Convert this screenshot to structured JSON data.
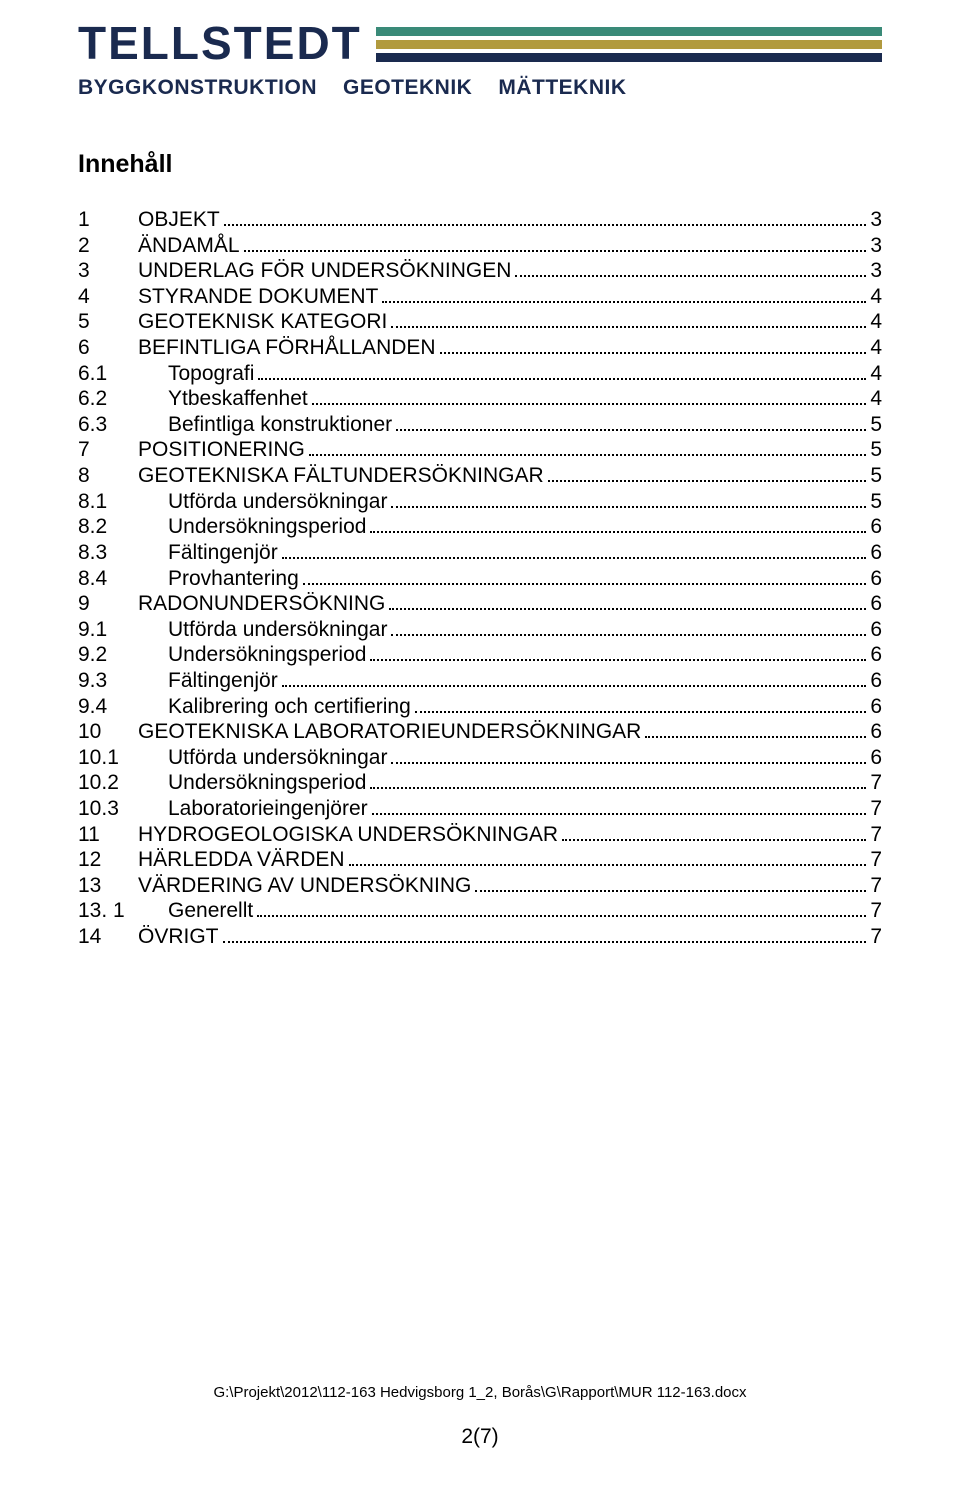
{
  "header": {
    "logo_text": "TELLSTEDT",
    "bar_colors": [
      "#3a8a78",
      "#b19a3e",
      "#1a2a4f"
    ],
    "subheads": [
      "BYGGKONSTRUKTION",
      "GEOTEKNIK",
      "MÄTTEKNIK"
    ],
    "logo_color": "#1a2a4f"
  },
  "section_title": "Innehåll",
  "toc": [
    {
      "num": "1",
      "title": "OBJEKT",
      "page": "3",
      "level": 1
    },
    {
      "num": "2",
      "title": "ÄNDAMÅL",
      "page": "3",
      "level": 1
    },
    {
      "num": "3",
      "title": "UNDERLAG FÖR UNDERSÖKNINGEN",
      "page": "3",
      "level": 1
    },
    {
      "num": "4",
      "title": "STYRANDE DOKUMENT",
      "page": "4",
      "level": 1
    },
    {
      "num": "5",
      "title": "GEOTEKNISK KATEGORI",
      "page": "4",
      "level": 1
    },
    {
      "num": "6",
      "title": "BEFINTLIGA FÖRHÅLLANDEN",
      "page": "4",
      "level": 1
    },
    {
      "num": "6.1",
      "title": "Topografi",
      "page": "4",
      "level": 2
    },
    {
      "num": "6.2",
      "title": "Ytbeskaffenhet",
      "page": "4",
      "level": 2
    },
    {
      "num": "6.3",
      "title": "Befintliga konstruktioner",
      "page": "5",
      "level": 2
    },
    {
      "num": "7",
      "title": "POSITIONERING",
      "page": "5",
      "level": 1
    },
    {
      "num": "8",
      "title": "GEOTEKNISKA FÄLTUNDERSÖKNINGAR",
      "page": "5",
      "level": 1
    },
    {
      "num": "8.1",
      "title": "Utförda undersökningar",
      "page": "5",
      "level": 2
    },
    {
      "num": "8.2",
      "title": "Undersökningsperiod",
      "page": "6",
      "level": 2
    },
    {
      "num": "8.3",
      "title": "Fältingenjör",
      "page": "6",
      "level": 2
    },
    {
      "num": "8.4",
      "title": "Provhantering",
      "page": "6",
      "level": 2
    },
    {
      "num": "9",
      "title": "RADONUNDERSÖKNING",
      "page": "6",
      "level": 1
    },
    {
      "num": "9.1",
      "title": "Utförda undersökningar",
      "page": "6",
      "level": 2
    },
    {
      "num": "9.2",
      "title": "Undersökningsperiod",
      "page": "6",
      "level": 2
    },
    {
      "num": "9.3",
      "title": "Fältingenjör",
      "page": "6",
      "level": 2
    },
    {
      "num": "9.4",
      "title": "Kalibrering och certifiering",
      "page": "6",
      "level": 2
    },
    {
      "num": "10",
      "title": "GEOTEKNISKA LABORATORIEUNDERSÖKNINGAR",
      "page": "6",
      "level": 1
    },
    {
      "num": "10.1",
      "title": "Utförda undersökningar",
      "page": "6",
      "level": 2
    },
    {
      "num": "10.2",
      "title": "Undersökningsperiod",
      "page": "7",
      "level": 2
    },
    {
      "num": "10.3",
      "title": "Laboratorieingenjörer",
      "page": "7",
      "level": 2
    },
    {
      "num": "11",
      "title": "HYDROGEOLOGISKA UNDERSÖKNINGAR",
      "page": "7",
      "level": 1
    },
    {
      "num": "12",
      "title": "HÄRLEDDA VÄRDEN",
      "page": "7",
      "level": 1
    },
    {
      "num": "13",
      "title": "VÄRDERING AV UNDERSÖKNING",
      "page": "7",
      "level": 1
    },
    {
      "num": "13. 1",
      "title": "Generellt",
      "page": "7",
      "level": 2
    },
    {
      "num": "14",
      "title": "ÖVRIGT",
      "page": "7",
      "level": 1
    }
  ],
  "footer": {
    "path": "G:\\Projekt\\2012\\112-163 Hedvigsborg 1_2, Borås\\G\\Rapport\\MUR 112-163.docx",
    "page_num": "2(7)"
  }
}
